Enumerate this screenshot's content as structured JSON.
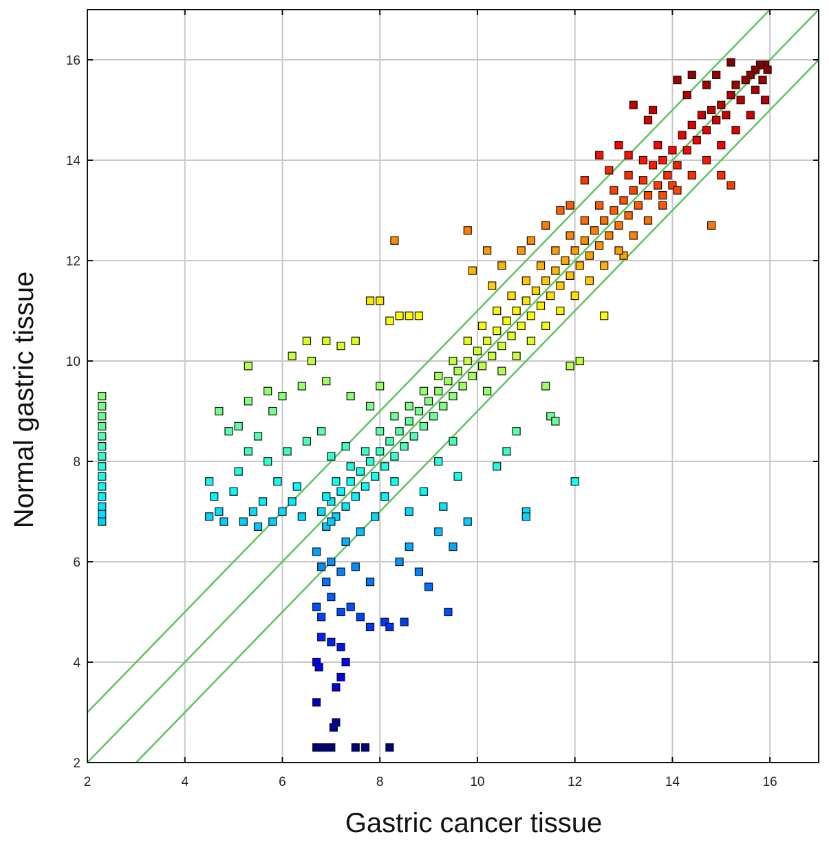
{
  "chart_data": {
    "type": "scatter",
    "title": "",
    "xlabel": "Gastric cancer tissue",
    "ylabel": "Normal gastric tissue",
    "xlim": [
      2,
      17
    ],
    "ylim": [
      2,
      17
    ],
    "xticks": [
      2,
      4,
      6,
      8,
      10,
      12,
      14,
      16
    ],
    "yticks": [
      2,
      4,
      6,
      8,
      10,
      12,
      14,
      16
    ],
    "x_tick_labels": [
      "2",
      "4",
      "6",
      "8",
      "10",
      "12",
      "14",
      "16"
    ],
    "y_tick_labels": [
      "2",
      "4",
      "6",
      "8",
      "10",
      "12",
      "14",
      "16"
    ],
    "grid": true,
    "marker": "square",
    "colormap": "jet (by normal gastric tissue value: blue low, red high)",
    "colors": {
      "grid": "#c8c8c8",
      "frame": "#111111",
      "reference_lines": "#5cc45c",
      "colormap_low": "#00008f",
      "colormap_high": "#800000"
    },
    "reference_lines": [
      {
        "slope": 1,
        "intercept": 1
      },
      {
        "slope": 1,
        "intercept": 0
      },
      {
        "slope": 1,
        "intercept": -1
      }
    ],
    "series": [
      {
        "points": [
          [
            15.9,
            15.9
          ],
          [
            15.8,
            15.9
          ],
          [
            15.95,
            15.8
          ],
          [
            15.7,
            15.8
          ],
          [
            15.6,
            15.7
          ],
          [
            15.85,
            15.6
          ],
          [
            15.5,
            15.6
          ],
          [
            15.7,
            15.4
          ],
          [
            15.3,
            15.5
          ],
          [
            15.4,
            15.2
          ],
          [
            15.2,
            15.3
          ],
          [
            15.1,
            14.9
          ],
          [
            15.0,
            15.1
          ],
          [
            14.9,
            14.8
          ],
          [
            14.8,
            15.0
          ],
          [
            14.7,
            14.6
          ],
          [
            14.6,
            14.9
          ],
          [
            14.5,
            14.4
          ],
          [
            14.4,
            14.7
          ],
          [
            14.3,
            14.2
          ],
          [
            14.2,
            14.5
          ],
          [
            14.1,
            13.9
          ],
          [
            14.0,
            14.2
          ],
          [
            13.9,
            13.7
          ],
          [
            13.8,
            14.0
          ],
          [
            13.7,
            13.5
          ],
          [
            13.6,
            13.9
          ],
          [
            13.5,
            13.3
          ],
          [
            13.4,
            13.6
          ],
          [
            13.3,
            13.1
          ],
          [
            13.2,
            13.4
          ],
          [
            13.1,
            12.9
          ],
          [
            13.0,
            13.2
          ],
          [
            12.9,
            12.7
          ],
          [
            12.8,
            13.0
          ],
          [
            12.7,
            12.5
          ],
          [
            12.6,
            12.8
          ],
          [
            12.5,
            12.3
          ],
          [
            12.4,
            12.6
          ],
          [
            12.3,
            12.1
          ],
          [
            12.2,
            12.4
          ],
          [
            12.1,
            11.9
          ],
          [
            12.0,
            12.2
          ],
          [
            11.9,
            11.7
          ],
          [
            11.8,
            12.0
          ],
          [
            11.7,
            11.5
          ],
          [
            11.6,
            11.8
          ],
          [
            11.5,
            11.3
          ],
          [
            11.4,
            11.6
          ],
          [
            11.3,
            11.1
          ],
          [
            11.2,
            11.4
          ],
          [
            11.1,
            10.9
          ],
          [
            11.0,
            11.2
          ],
          [
            10.9,
            10.7
          ],
          [
            10.8,
            11.0
          ],
          [
            10.7,
            10.5
          ],
          [
            10.6,
            10.8
          ],
          [
            10.5,
            10.3
          ],
          [
            10.4,
            10.6
          ],
          [
            10.3,
            10.1
          ],
          [
            10.2,
            10.4
          ],
          [
            10.1,
            9.9
          ],
          [
            10.0,
            10.2
          ],
          [
            9.9,
            9.7
          ],
          [
            9.8,
            10.0
          ],
          [
            9.7,
            9.5
          ],
          [
            9.6,
            9.8
          ],
          [
            9.5,
            9.3
          ],
          [
            9.4,
            9.6
          ],
          [
            9.3,
            9.1
          ],
          [
            9.2,
            9.4
          ],
          [
            9.1,
            8.9
          ],
          [
            9.0,
            9.2
          ],
          [
            8.9,
            8.7
          ],
          [
            8.8,
            9.0
          ],
          [
            8.7,
            8.5
          ],
          [
            8.6,
            8.8
          ],
          [
            8.5,
            8.3
          ],
          [
            8.4,
            8.6
          ],
          [
            8.3,
            8.1
          ],
          [
            8.2,
            8.4
          ],
          [
            8.1,
            7.9
          ],
          [
            8.0,
            8.2
          ],
          [
            7.9,
            7.7
          ],
          [
            7.8,
            8.0
          ],
          [
            7.7,
            7.5
          ],
          [
            7.6,
            7.8
          ],
          [
            7.5,
            7.3
          ],
          [
            7.4,
            7.6
          ],
          [
            7.3,
            7.1
          ],
          [
            7.2,
            7.4
          ],
          [
            7.1,
            6.9
          ],
          [
            7.0,
            7.2
          ],
          [
            6.9,
            6.7
          ],
          [
            6.8,
            7.0
          ],
          [
            15.2,
            15.95
          ],
          [
            14.9,
            15.7
          ],
          [
            14.7,
            15.5
          ],
          [
            14.4,
            15.7
          ],
          [
            14.1,
            15.6
          ],
          [
            14.3,
            15.3
          ],
          [
            13.6,
            15.0
          ],
          [
            13.2,
            15.1
          ],
          [
            13.5,
            14.8
          ],
          [
            12.9,
            14.3
          ],
          [
            13.1,
            14.1
          ],
          [
            12.5,
            14.1
          ],
          [
            12.7,
            13.8
          ],
          [
            12.2,
            13.6
          ],
          [
            11.9,
            13.1
          ],
          [
            11.7,
            13.0
          ],
          [
            11.4,
            12.7
          ],
          [
            11.1,
            12.4
          ],
          [
            10.9,
            12.2
          ],
          [
            10.5,
            11.9
          ],
          [
            10.3,
            11.5
          ],
          [
            9.8,
            12.6
          ],
          [
            8.3,
            12.4
          ],
          [
            9.9,
            11.8
          ],
          [
            10.2,
            12.2
          ],
          [
            8.0,
            11.2
          ],
          [
            7.8,
            11.2
          ],
          [
            8.2,
            10.8
          ],
          [
            8.4,
            10.9
          ],
          [
            8.6,
            10.9
          ],
          [
            8.8,
            10.9
          ],
          [
            7.5,
            10.4
          ],
          [
            7.2,
            10.3
          ],
          [
            6.9,
            10.4
          ],
          [
            6.5,
            10.4
          ],
          [
            6.6,
            10.0
          ],
          [
            6.2,
            10.1
          ],
          [
            5.3,
            9.9
          ],
          [
            5.7,
            9.4
          ],
          [
            5.3,
            9.2
          ],
          [
            5.1,
            8.7
          ],
          [
            4.7,
            9.0
          ],
          [
            4.9,
            8.6
          ],
          [
            5.8,
            9.0
          ],
          [
            6.0,
            9.3
          ],
          [
            6.4,
            9.5
          ],
          [
            6.9,
            9.6
          ],
          [
            7.4,
            9.3
          ],
          [
            7.8,
            9.1
          ],
          [
            8.0,
            9.5
          ],
          [
            4.5,
            7.6
          ],
          [
            4.6,
            7.3
          ],
          [
            4.7,
            7.0
          ],
          [
            4.5,
            6.9
          ],
          [
            4.8,
            6.8
          ],
          [
            5.0,
            7.4
          ],
          [
            5.1,
            7.8
          ],
          [
            5.3,
            8.2
          ],
          [
            5.2,
            6.8
          ],
          [
            5.4,
            7.0
          ],
          [
            5.6,
            7.2
          ],
          [
            5.5,
            6.7
          ],
          [
            5.8,
            6.8
          ],
          [
            6.0,
            7.0
          ],
          [
            6.2,
            7.2
          ],
          [
            6.4,
            6.9
          ],
          [
            6.3,
            7.5
          ],
          [
            5.9,
            7.6
          ],
          [
            5.7,
            8.0
          ],
          [
            5.5,
            8.5
          ],
          [
            6.1,
            8.2
          ],
          [
            6.5,
            8.4
          ],
          [
            6.8,
            8.6
          ],
          [
            7.0,
            8.1
          ],
          [
            7.3,
            8.3
          ],
          [
            6.7,
            6.2
          ],
          [
            6.8,
            5.9
          ],
          [
            6.9,
            5.6
          ],
          [
            7.0,
            6.0
          ],
          [
            7.2,
            5.8
          ],
          [
            7.5,
            5.9
          ],
          [
            7.8,
            5.6
          ],
          [
            7.0,
            5.3
          ],
          [
            7.2,
            5.0
          ],
          [
            7.4,
            5.1
          ],
          [
            6.7,
            5.1
          ],
          [
            6.8,
            4.9
          ],
          [
            7.6,
            4.9
          ],
          [
            7.8,
            4.7
          ],
          [
            8.1,
            4.8
          ],
          [
            8.2,
            4.7
          ],
          [
            8.5,
            4.8
          ],
          [
            7.0,
            4.4
          ],
          [
            7.2,
            4.3
          ],
          [
            6.8,
            4.5
          ],
          [
            6.7,
            4.0
          ],
          [
            6.75,
            3.9
          ],
          [
            7.3,
            4.0
          ],
          [
            7.2,
            3.7
          ],
          [
            7.1,
            3.5
          ],
          [
            6.7,
            3.2
          ],
          [
            7.1,
            2.8
          ],
          [
            7.05,
            2.7
          ],
          [
            6.7,
            2.3
          ],
          [
            6.85,
            2.3
          ],
          [
            7.0,
            2.3
          ],
          [
            7.5,
            2.3
          ],
          [
            7.7,
            2.3
          ],
          [
            8.2,
            2.3
          ],
          [
            9.4,
            5.0
          ],
          [
            9.0,
            5.5
          ],
          [
            8.8,
            5.8
          ],
          [
            9.5,
            6.3
          ],
          [
            9.2,
            6.6
          ],
          [
            9.8,
            6.8
          ],
          [
            8.6,
            6.3
          ],
          [
            8.4,
            6.0
          ],
          [
            10.4,
            7.9
          ],
          [
            10.6,
            8.2
          ],
          [
            10.8,
            8.6
          ],
          [
            11.0,
            7.0
          ],
          [
            11.0,
            6.9
          ],
          [
            12.0,
            7.6
          ],
          [
            11.5,
            8.9
          ],
          [
            11.6,
            8.8
          ],
          [
            11.4,
            9.5
          ],
          [
            11.9,
            9.9
          ],
          [
            12.1,
            10.0
          ],
          [
            12.6,
            10.9
          ],
          [
            13.0,
            12.1
          ],
          [
            14.8,
            12.7
          ],
          [
            15.2,
            13.5
          ],
          [
            15.0,
            13.7
          ],
          [
            13.8,
            13.3
          ],
          [
            14.0,
            13.5
          ],
          [
            2.3,
            9.3
          ],
          [
            2.3,
            9.1
          ],
          [
            2.3,
            8.9
          ],
          [
            2.3,
            8.7
          ],
          [
            2.3,
            8.5
          ],
          [
            2.3,
            8.3
          ],
          [
            2.3,
            8.1
          ],
          [
            2.3,
            7.9
          ],
          [
            2.3,
            7.7
          ],
          [
            2.3,
            7.5
          ],
          [
            2.3,
            7.3
          ],
          [
            2.3,
            7.1
          ],
          [
            2.3,
            6.95
          ],
          [
            2.3,
            6.8
          ],
          [
            9.5,
            8.4
          ],
          [
            9.2,
            8.0
          ],
          [
            9.6,
            7.7
          ],
          [
            8.9,
            7.4
          ],
          [
            9.3,
            7.1
          ],
          [
            8.6,
            7.0
          ],
          [
            8.3,
            7.6
          ],
          [
            8.1,
            7.3
          ],
          [
            7.9,
            6.9
          ],
          [
            7.6,
            6.6
          ],
          [
            7.3,
            6.4
          ],
          [
            7.0,
            6.8
          ],
          [
            6.9,
            7.3
          ],
          [
            7.1,
            7.6
          ],
          [
            7.4,
            7.9
          ],
          [
            7.7,
            8.2
          ],
          [
            8.0,
            8.6
          ],
          [
            8.3,
            8.9
          ],
          [
            8.6,
            9.1
          ],
          [
            8.9,
            9.4
          ],
          [
            9.2,
            9.7
          ],
          [
            9.5,
            10.0
          ],
          [
            9.8,
            10.4
          ],
          [
            10.1,
            10.7
          ],
          [
            10.4,
            11.0
          ],
          [
            10.7,
            11.3
          ],
          [
            11.0,
            11.6
          ],
          [
            11.3,
            11.9
          ],
          [
            11.6,
            12.2
          ],
          [
            11.9,
            12.5
          ],
          [
            12.2,
            12.8
          ],
          [
            12.5,
            13.1
          ],
          [
            12.8,
            13.4
          ],
          [
            13.1,
            13.7
          ],
          [
            13.4,
            14.0
          ],
          [
            13.7,
            14.3
          ],
          [
            10.2,
            9.4
          ],
          [
            10.5,
            9.8
          ],
          [
            10.8,
            10.1
          ],
          [
            11.1,
            10.4
          ],
          [
            11.4,
            10.7
          ],
          [
            11.7,
            11.0
          ],
          [
            12.0,
            11.3
          ],
          [
            12.3,
            11.6
          ],
          [
            12.6,
            11.9
          ],
          [
            12.9,
            12.2
          ],
          [
            13.2,
            12.5
          ],
          [
            13.5,
            12.8
          ],
          [
            13.8,
            13.1
          ],
          [
            14.1,
            13.4
          ],
          [
            14.4,
            13.7
          ],
          [
            14.7,
            14.0
          ],
          [
            15.0,
            14.3
          ],
          [
            15.3,
            14.6
          ],
          [
            15.6,
            14.9
          ],
          [
            15.9,
            15.2
          ]
        ]
      }
    ]
  }
}
